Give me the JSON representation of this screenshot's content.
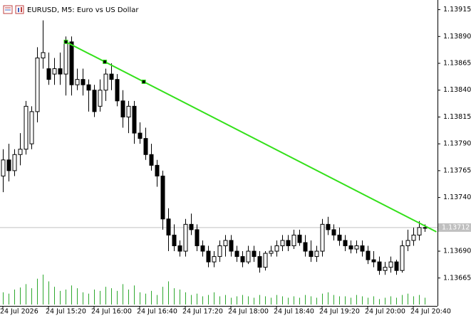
{
  "chart_data": {
    "type": "candlestick",
    "title": "EURUSD, M5:  Euro vs US Dollar",
    "categories": [
      "24 Jul 2026",
      null,
      null,
      null,
      null,
      null,
      null,
      null,
      "24 Jul 15:20",
      null,
      null,
      null,
      null,
      null,
      null,
      null,
      "24 Jul 16:00",
      null,
      null,
      null,
      null,
      null,
      null,
      null,
      "24 Jul 16:40",
      null,
      null,
      null,
      null,
      null,
      null,
      null,
      "24 Jul 17:20",
      null,
      null,
      null,
      null,
      null,
      null,
      null,
      "24 Jul 18:00",
      null,
      null,
      null,
      null,
      null,
      null,
      null,
      "24 Jul 18:40",
      null,
      null,
      null,
      null,
      null,
      null,
      null,
      "24 Jul 19:20",
      null,
      null,
      null,
      null,
      null,
      null,
      null,
      "24 Jul 20:00",
      null,
      null,
      null,
      null,
      null,
      null,
      null,
      "24 Jul 20:40",
      null,
      null
    ],
    "open": [
      1.1376,
      1.13775,
      1.13765,
      1.1378,
      1.13785,
      1.1379,
      1.1382,
      1.1387,
      1.1386,
      1.13855,
      1.1386,
      1.13855,
      1.13885,
      1.13845,
      1.1385,
      1.13845,
      1.1384,
      1.13825,
      1.1384,
      1.13855,
      1.1385,
      1.1383,
      1.13815,
      1.13825,
      1.138,
      1.13795,
      1.1378,
      1.1377,
      1.1376,
      1.1372,
      1.13705,
      1.13695,
      1.1369,
      1.13715,
      1.1371,
      1.13695,
      1.1369,
      1.1368,
      1.13685,
      1.13695,
      1.137,
      1.1369,
      1.13685,
      1.1368,
      1.1369,
      1.13685,
      1.13675,
      1.13688,
      1.1369,
      1.13695,
      1.137,
      1.13695,
      1.13705,
      1.13698,
      1.1369,
      1.13685,
      1.1369,
      1.13715,
      1.1371,
      1.13705,
      1.137,
      1.13695,
      1.13692,
      1.13695,
      1.1369,
      1.13682,
      1.1368,
      1.13672,
      1.13675,
      1.1368,
      1.13672,
      1.13695,
      1.137,
      1.13705,
      1.13712
    ],
    "high": [
      1.13785,
      1.1379,
      1.13785,
      1.138,
      1.1383,
      1.13825,
      1.1388,
      1.13905,
      1.13875,
      1.1387,
      1.13875,
      1.1389,
      1.1389,
      1.1386,
      1.1386,
      1.1385,
      1.13845,
      1.1385,
      1.1386,
      1.13865,
      1.13855,
      1.1384,
      1.1383,
      1.1383,
      1.1381,
      1.13805,
      1.1379,
      1.13775,
      1.13765,
      1.1373,
      1.13715,
      1.137,
      1.1372,
      1.13725,
      1.13715,
      1.137,
      1.13695,
      1.1369,
      1.137,
      1.13705,
      1.13705,
      1.13695,
      1.1369,
      1.13695,
      1.13695,
      1.1369,
      1.1369,
      1.13695,
      1.137,
      1.13705,
      1.13705,
      1.1371,
      1.1371,
      1.13705,
      1.137,
      1.13695,
      1.1372,
      1.13722,
      1.13715,
      1.13712,
      1.13705,
      1.137,
      1.137,
      1.137,
      1.13695,
      1.1369,
      1.13685,
      1.1368,
      1.13685,
      1.13682,
      1.137,
      1.1371,
      1.13712,
      1.13718,
      1.13715
    ],
    "low": [
      1.13745,
      1.13755,
      1.1376,
      1.1377,
      1.1378,
      1.13785,
      1.1381,
      1.1386,
      1.13845,
      1.13845,
      1.13845,
      1.13835,
      1.13835,
      1.1384,
      1.13835,
      1.1382,
      1.13815,
      1.1382,
      1.1383,
      1.1384,
      1.13825,
      1.13805,
      1.138,
      1.1379,
      1.1379,
      1.13775,
      1.13765,
      1.1375,
      1.1371,
      1.1369,
      1.1369,
      1.13685,
      1.13685,
      1.13705,
      1.1369,
      1.13685,
      1.13675,
      1.13675,
      1.1368,
      1.13685,
      1.13685,
      1.1368,
      1.13675,
      1.13678,
      1.1368,
      1.1367,
      1.13672,
      1.13685,
      1.13685,
      1.1369,
      1.1369,
      1.13692,
      1.13695,
      1.13685,
      1.1368,
      1.1368,
      1.13685,
      1.13705,
      1.137,
      1.13695,
      1.1369,
      1.13688,
      1.13688,
      1.13685,
      1.13678,
      1.13675,
      1.13668,
      1.13668,
      1.1367,
      1.13668,
      1.1367,
      1.1369,
      1.13695,
      1.137,
      1.13708
    ],
    "close": [
      1.13775,
      1.13765,
      1.1378,
      1.13785,
      1.13825,
      1.1382,
      1.1387,
      1.13875,
      1.1385,
      1.1386,
      1.13855,
      1.13885,
      1.13845,
      1.1385,
      1.13845,
      1.1384,
      1.1382,
      1.1384,
      1.13855,
      1.1385,
      1.1383,
      1.13815,
      1.13825,
      1.138,
      1.13795,
      1.1378,
      1.1377,
      1.1376,
      1.1372,
      1.13705,
      1.13695,
      1.1369,
      1.13715,
      1.1371,
      1.13695,
      1.1369,
      1.1368,
      1.13685,
      1.13695,
      1.137,
      1.1369,
      1.13685,
      1.1368,
      1.1369,
      1.13685,
      1.13675,
      1.13688,
      1.1369,
      1.13695,
      1.137,
      1.13695,
      1.13705,
      1.13698,
      1.1369,
      1.13685,
      1.1369,
      1.13715,
      1.1371,
      1.13705,
      1.137,
      1.13695,
      1.13692,
      1.13695,
      1.1369,
      1.13682,
      1.1368,
      1.13672,
      1.13675,
      1.1368,
      1.13672,
      1.13695,
      1.137,
      1.13705,
      1.13712,
      1.13712
    ],
    "volumes": [
      18,
      16,
      22,
      25,
      30,
      24,
      38,
      44,
      34,
      26,
      20,
      22,
      28,
      24,
      18,
      16,
      22,
      20,
      26,
      24,
      20,
      30,
      22,
      28,
      18,
      16,
      20,
      14,
      26,
      34,
      24,
      22,
      18,
      14,
      16,
      12,
      14,
      18,
      12,
      14,
      10,
      12,
      14,
      12,
      10,
      14,
      12,
      10,
      14,
      12,
      10,
      12,
      10,
      14,
      12,
      10,
      16,
      18,
      14,
      12,
      12,
      10,
      14,
      12,
      10,
      12,
      8,
      10,
      12,
      10,
      14,
      16,
      12,
      14,
      10
    ],
    "up_color": "#ffffff",
    "down_color": "#000000",
    "volume_color": "#2ea82e",
    "ylim": [
      1.13639,
      1.13924
    ],
    "yticks": [
      1.13915,
      {
        "value": 1.1389,
        "label": "1.13890"
      },
      1.13865,
      {
        "value": 1.1384,
        "label": "1.13840"
      },
      1.13815,
      {
        "value": 1.1379,
        "label": "1.13790"
      },
      1.13765,
      {
        "value": 1.1374,
        "label": "1.13740"
      },
      {
        "value": 1.1369,
        "label": "1.13690"
      },
      1.13665
    ],
    "current_price": 1.13712,
    "trendline": {
      "color": "#33e01a",
      "x": [
        11,
        76
      ],
      "values": [
        1.13885,
        1.13708
      ]
    }
  }
}
